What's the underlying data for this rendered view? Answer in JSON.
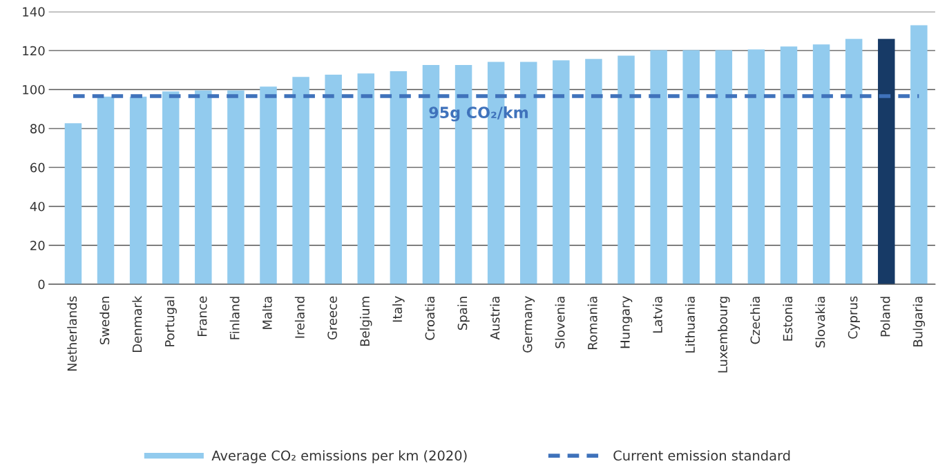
{
  "chart_data": {
    "type": "bar",
    "categories": [
      "Netherlands",
      "Sweden",
      "Denmark",
      "Portugal",
      "France",
      "Finland",
      "Malta",
      "Ireland",
      "Greece",
      "Belgium",
      "Italy",
      "Croatia",
      "Spain",
      "Austria",
      "Germany",
      "Slovenia",
      "Romania",
      "Hungary",
      "Latvia",
      "Lithuania",
      "Luxembourg",
      "Czechia",
      "Estonia",
      "Slovakia",
      "Cyprus",
      "Poland",
      "Bulgaria"
    ],
    "series": [
      {
        "name": "Average CO₂ emissions per km (2020)",
        "color": "#92cbee",
        "values": [
          82.7,
          96.4,
          96.4,
          99.0,
          99.6,
          99.6,
          101.5,
          106.5,
          107.6,
          108.3,
          109.4,
          112.6,
          112.6,
          114.2,
          114.2,
          115.0,
          115.7,
          117.4,
          120.2,
          120.2,
          120.2,
          120.6,
          122.1,
          123.2,
          126.0,
          126.0,
          133.0
        ],
        "colors": [
          "#92cbee",
          "#92cbee",
          "#92cbee",
          "#92cbee",
          "#92cbee",
          "#92cbee",
          "#92cbee",
          "#92cbee",
          "#92cbee",
          "#92cbee",
          "#92cbee",
          "#92cbee",
          "#92cbee",
          "#92cbee",
          "#92cbee",
          "#92cbee",
          "#92cbee",
          "#92cbee",
          "#92cbee",
          "#92cbee",
          "#92cbee",
          "#92cbee",
          "#92cbee",
          "#92cbee",
          "#92cbee",
          "#173a66",
          "#92cbee"
        ]
      },
      {
        "name": "Current emission standard",
        "type": "line",
        "line_style": "dashed",
        "color": "#3f72bb",
        "values": [
          96.6,
          96.6,
          96.6,
          96.6,
          96.6,
          96.6,
          96.6,
          96.6,
          96.6,
          96.6,
          96.6,
          96.6,
          96.6,
          96.6,
          96.6,
          96.6,
          96.6,
          96.6,
          96.6,
          96.6,
          96.6,
          96.6,
          96.6,
          96.6,
          96.6,
          96.6,
          96.6
        ]
      }
    ],
    "annotations": [
      "95g CO₂/km"
    ],
    "ylim": [
      0,
      140
    ],
    "yticks": [
      0,
      20,
      40,
      60,
      80,
      100,
      120,
      140
    ],
    "grid": "y",
    "legend": "bottom"
  }
}
